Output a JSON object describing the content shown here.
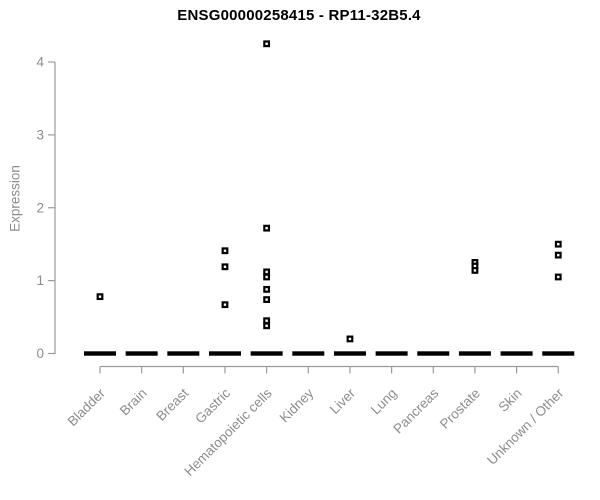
{
  "chart_data": {
    "type": "scatter",
    "title": "ENSG00000258415 - RP11-32B5.4",
    "xlabel": "",
    "ylabel": "Expression",
    "ylim": [
      0,
      4
    ],
    "yticks": [
      0,
      1,
      2,
      3,
      4
    ],
    "grid": false,
    "legend": "none",
    "marker": "open-square",
    "categories": [
      "Bladder",
      "Brain",
      "Breast",
      "Gastric",
      "Hematopoietic cells",
      "Kidney",
      "Liver",
      "Lung",
      "Pancreas",
      "Prostate",
      "Skin",
      "Unknown / Other"
    ],
    "zero_baseline": {
      "value": 0,
      "all_categories": true
    },
    "points": [
      {
        "category": "Bladder",
        "value": 0.78
      },
      {
        "category": "Gastric",
        "value": 1.41
      },
      {
        "category": "Gastric",
        "value": 1.19
      },
      {
        "category": "Gastric",
        "value": 0.67
      },
      {
        "category": "Hematopoietic cells",
        "value": 4.25
      },
      {
        "category": "Hematopoietic cells",
        "value": 1.72
      },
      {
        "category": "Hematopoietic cells",
        "value": 1.12
      },
      {
        "category": "Hematopoietic cells",
        "value": 1.05
      },
      {
        "category": "Hematopoietic cells",
        "value": 0.88
      },
      {
        "category": "Hematopoietic cells",
        "value": 0.74
      },
      {
        "category": "Hematopoietic cells",
        "value": 0.45
      },
      {
        "category": "Hematopoietic cells",
        "value": 0.38
      },
      {
        "category": "Liver",
        "value": 0.2
      },
      {
        "category": "Prostate",
        "value": 1.25
      },
      {
        "category": "Prostate",
        "value": 1.2
      },
      {
        "category": "Prostate",
        "value": 1.14
      },
      {
        "category": "Unknown / Other",
        "value": 1.5
      },
      {
        "category": "Unknown / Other",
        "value": 1.35
      },
      {
        "category": "Unknown / Other",
        "value": 1.05
      }
    ],
    "colors": {
      "point": "#000000",
      "title": "#000000",
      "axis_text": "#8c8c8c",
      "axis_line": "#9b9b9b",
      "background": "#ffffff"
    }
  }
}
